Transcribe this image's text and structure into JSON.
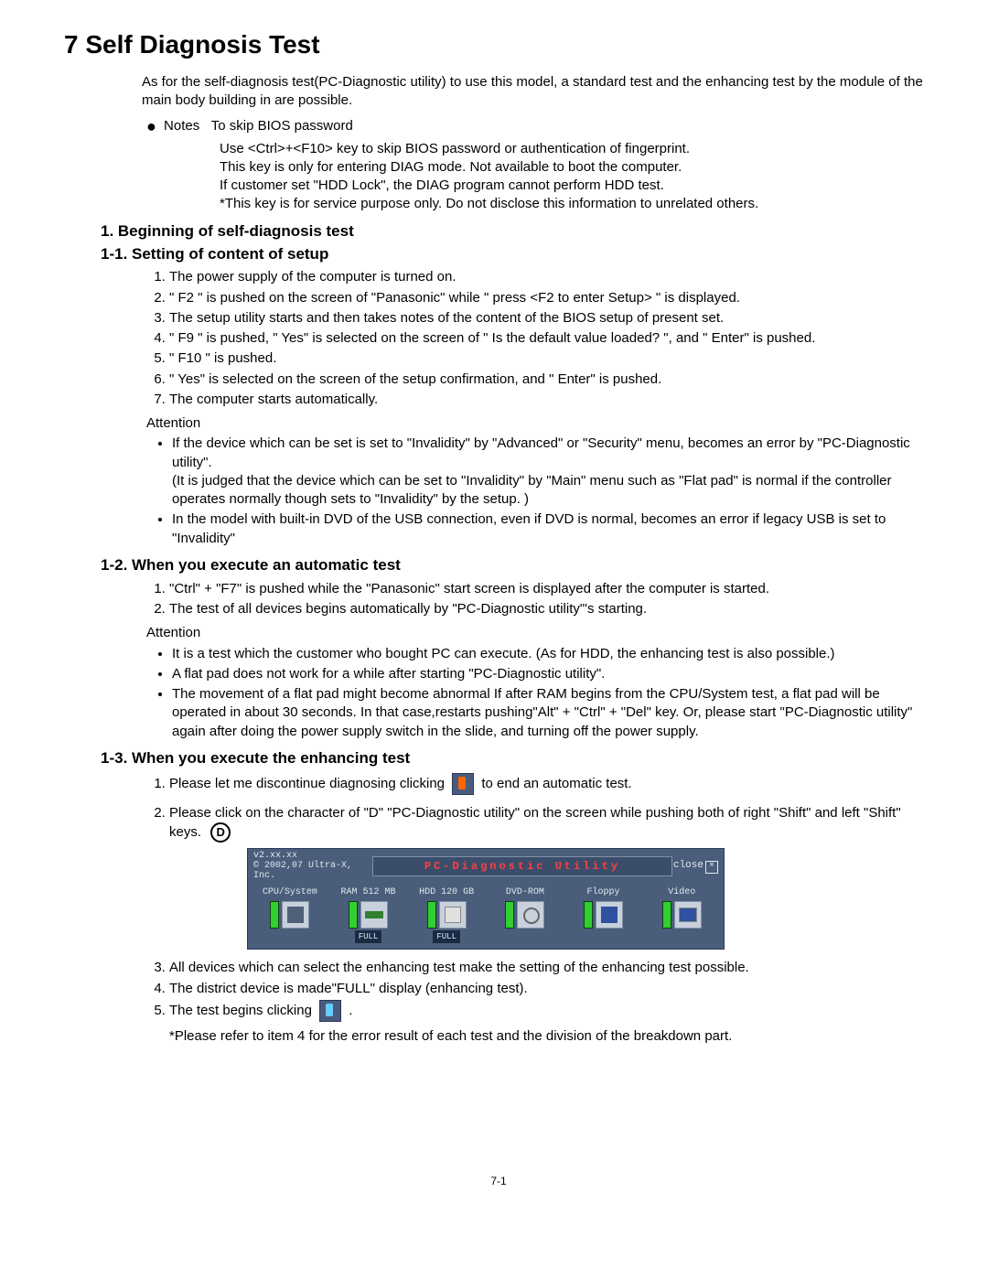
{
  "title": "7  Self Diagnosis Test",
  "intro": "As for the self-diagnosis test(PC-Diagnostic utility) to use this model, a standard test and the enhancing test by the module of the main body building in are possible.",
  "notes_label": "Notes",
  "notes_subtitle": "To skip BIOS password",
  "notes_lines": [
    "Use <Ctrl>+<F10> key to skip BIOS password or authentication of fingerprint.",
    "This key is only for entering DIAG mode. Not available to boot the computer.",
    "If customer set \"HDD Lock\",  the DIAG program cannot perform HDD test.",
    "*This key is for service purpose only. Do not disclose this information to unrelated others."
  ],
  "section1": "1. Beginning of self-diagnosis test",
  "sub11": "1-1. Setting of content of setup",
  "steps11": [
    "The power supply of the computer is turned on.",
    "\" F2 \" is pushed on the screen of  \"Panasonic\" while \" press <F2 to enter Setup> \" is displayed.",
    "The setup utility starts and then takes notes of the content of the BIOS setup of present set.",
    "\" F9 \" is pushed, \" Yes\" is selected on the screen of \" Is the default value loaded? \", and \" Enter\" is pushed.",
    "\" F10 \" is pushed.",
    "\" Yes\" is selected on the screen of the setup confirmation, and \" Enter\" is pushed.",
    "The computer starts automatically."
  ],
  "attention_label": "Attention",
  "attn11": [
    "If the device which can be set is set to \"Invalidity\" by \"Advanced\" or \"Security\" menu, becomes an error by \"PC-Diagnostic utility\".\n(It is judged that the device which can be set to \"Invalidity\" by \"Main\" menu such as \"Flat pad\" is normal if the controller operates normally though sets to \"Invalidity\" by the setup. )",
    "In the model with built-in DVD of the USB connection, even if DVD is normal, becomes an error if legacy USB is set to \"Invalidity\""
  ],
  "sub12": "1-2. When you execute an automatic test",
  "steps12": [
    "\"Ctrl\" + \"F7\" is pushed while the \"Panasonic\" start screen is displayed after the computer is started.",
    "The test of all devices begins automatically by \"PC-Diagnostic utility\"'s starting."
  ],
  "attn12": [
    "It is a test which the customer who bought PC can execute. (As for HDD, the enhancing test is also possible.)",
    "A flat pad does not work for a while after starting \"PC-Diagnostic utility\".",
    "The movement of a flat pad might become abnormal If after RAM begins from the CPU/System test, a flat pad will be operated in about 30 seconds. In that case,restarts pushing\"Alt\" + \"Ctrl\" + \"Del\" key. Or, please start \"PC-Diagnostic utility\" again after doing the power supply switch in the slide, and turning off the power supply."
  ],
  "sub13": "1-3. When you execute the enhancing test",
  "step13_1a": "Please let me discontinue diagnosing clicking",
  "step13_1b": "to end an automatic test.",
  "step13_2": "Please click on the character of \"D\" \"PC-Diagnostic utility\" on the screen while pushing both of right \"Shift\" and left \"Shift\" keys.",
  "d_badge": "D",
  "diag": {
    "version": "v2.xx.xx",
    "copyright": "© 2002,07 Ultra-X, Inc.",
    "title": "PC-Diagnostic Utility",
    "close": "close",
    "devices": [
      {
        "label": "CPU/System",
        "full": false
      },
      {
        "label": "RAM 512 MB",
        "full": true
      },
      {
        "label": "HDD 120 GB",
        "full": true
      },
      {
        "label": "DVD-ROM",
        "full": false
      },
      {
        "label": "Floppy",
        "full": false
      },
      {
        "label": "Video",
        "full": false
      }
    ],
    "full_label": "FULL",
    "led_color": "#30d030",
    "panel_bg": "#4a5d7a",
    "title_color": "#ff4040"
  },
  "step13_3": "All devices which can select the enhancing test make the setting of the enhancing test possible.",
  "step13_4": "The district device is made\"FULL\" display (enhancing test).",
  "step13_5": "The test begins clicking",
  "step13_5b": ".",
  "footnote": "*Please refer to item 4 for the error result of each test and the division of the breakdown part.",
  "page_num": "7-1"
}
